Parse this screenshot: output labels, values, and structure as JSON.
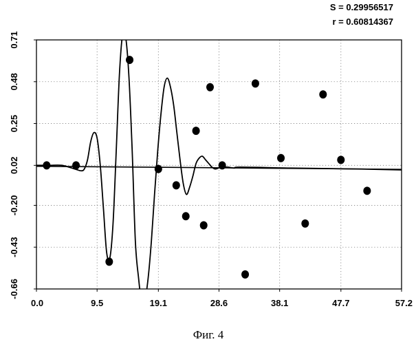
{
  "chart_data": {
    "type": "scatter",
    "title": "",
    "xlabel": "",
    "ylabel": "",
    "xlim": [
      0.0,
      57.2
    ],
    "ylim": [
      -0.66,
      0.71
    ],
    "x_ticks": [
      "0.0",
      "9.5",
      "19.1",
      "28.6",
      "38.1",
      "47.7",
      "57.2"
    ],
    "y_ticks": [
      "0.71",
      "0.48",
      "0.25",
      "0.02",
      "-0.20",
      "-0.43",
      "-0.66"
    ],
    "grid": true,
    "stats": [
      "S = 0.29956517",
      "r = 0.60814367"
    ],
    "caption": "Фиг. 4",
    "series": [
      {
        "kind": "points",
        "x": [
          1.6,
          6.2,
          11.4,
          14.6,
          19.1,
          21.9,
          23.4,
          25.0,
          26.2,
          27.2,
          29.1,
          32.7,
          34.3,
          38.3,
          42.1,
          44.9,
          47.7,
          51.8
        ],
        "y": [
          0.02,
          0.02,
          -0.51,
          0.6,
          0.0,
          -0.09,
          -0.26,
          0.21,
          -0.31,
          0.45,
          0.02,
          -0.58,
          0.47,
          0.06,
          -0.3,
          0.41,
          0.05,
          -0.12
        ]
      },
      {
        "kind": "curve",
        "x": [
          0,
          2,
          4,
          6,
          7,
          7.5,
          8,
          8.5,
          9.0,
          9.5,
          10,
          10.5,
          11.0,
          11.5,
          12.0,
          12.5,
          13.0,
          13.5,
          14.0,
          14.5,
          15.0,
          15.5,
          16.0,
          16.5,
          17.0,
          17.5,
          18.0,
          18.5,
          19.0,
          19.5,
          20.0,
          20.5,
          21.0,
          21.5,
          22.0,
          22.5,
          23.0,
          23.5,
          24.0,
          24.5,
          25.0,
          25.5,
          26.0,
          26.5,
          27.0,
          27.5,
          28.0,
          28.5,
          29.0,
          30.0,
          31.0,
          32.0,
          40.0,
          50.0,
          57.2
        ],
        "y": [
          0.02,
          0.02,
          0.02,
          0.0,
          -0.01,
          0.0,
          0.05,
          0.15,
          0.2,
          0.17,
          0.02,
          -0.22,
          -0.46,
          -0.49,
          -0.3,
          0.1,
          0.52,
          0.74,
          0.72,
          0.5,
          0.1,
          -0.4,
          -0.6,
          -0.74,
          -0.72,
          -0.6,
          -0.4,
          -0.14,
          0.1,
          0.3,
          0.45,
          0.5,
          0.45,
          0.35,
          0.2,
          0.05,
          -0.08,
          -0.14,
          -0.1,
          -0.04,
          0.03,
          0.06,
          0.07,
          0.05,
          0.03,
          0.01,
          0.0,
          0.005,
          0.01,
          0.01,
          0.005,
          0.01,
          0.005,
          0.0,
          -0.005
        ]
      }
    ],
    "baseline": {
      "x": [
        0.0,
        57.2
      ],
      "y": [
        0.015,
        -0.002
      ]
    }
  }
}
